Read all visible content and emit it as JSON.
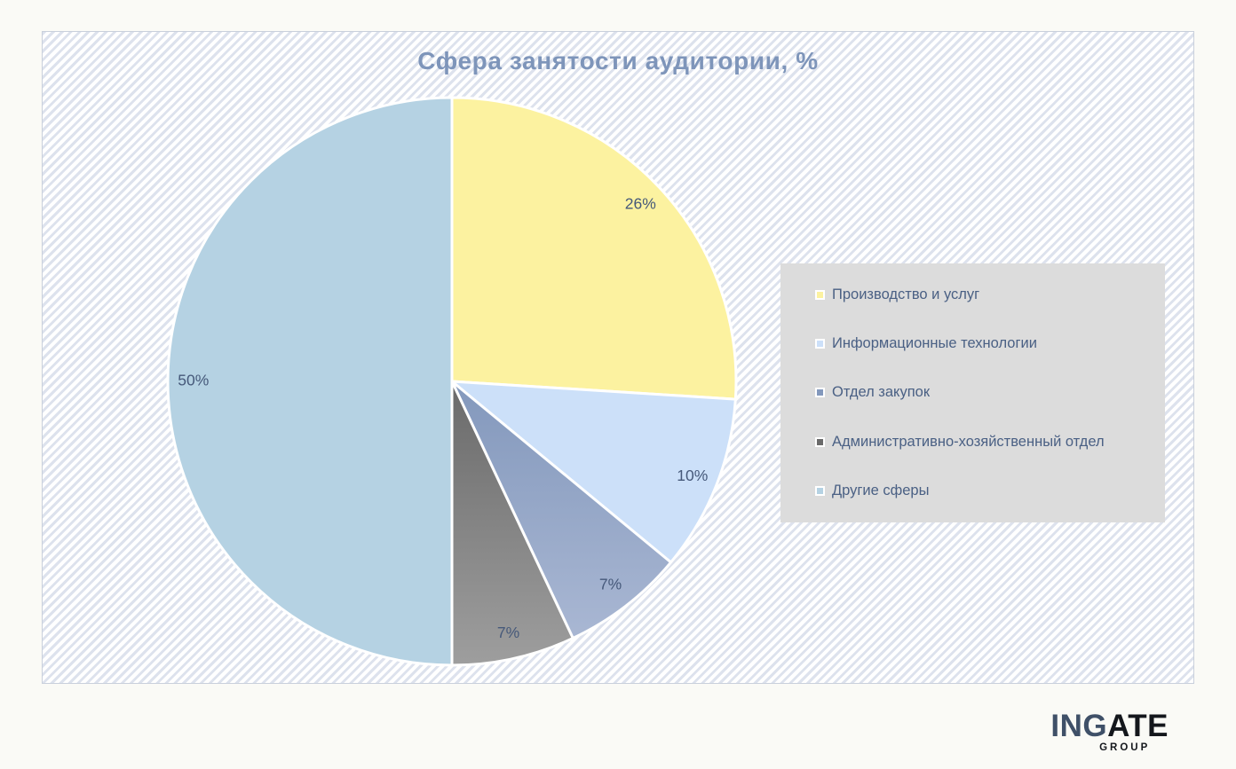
{
  "chart_data": {
    "type": "pie",
    "title": "Сфера занятости аудитории, %",
    "start_angle_deg": 0,
    "direction": "clockwise",
    "label_radius_ratio": 0.91,
    "label_color": "#46597a",
    "label_font_size": 17.5,
    "legend_position": "right",
    "slices": [
      {
        "label": "Производство и услуг",
        "value": 26,
        "display": "26%",
        "color": "#fcf2a0"
      },
      {
        "label": "Информационные технологии",
        "value": 10,
        "display": "10%",
        "color": "#cce0f9"
      },
      {
        "label": "Отдел закупок",
        "value": 7,
        "display": "7%",
        "color": "#8398bc",
        "color2": "#a9b7d3"
      },
      {
        "label": "Административно-хозяйственный отдел",
        "value": 7,
        "display": "7%",
        "color": "#6a6a6a",
        "color2": "#9e9e9e"
      },
      {
        "label": "Другие сферы",
        "value": 50,
        "display": "50%",
        "color": "#b5d2e3"
      }
    ]
  },
  "colors": {
    "title": "#7e95ba",
    "legend_background": "#dcdcdc",
    "legend_text": "#4a6084",
    "panel_stripe": "#dde2ed",
    "page_background": "#fafaf6",
    "slice_border": "#ffffff"
  },
  "logo": {
    "part1": "ING",
    "part2": "ATE",
    "subtitle": "GROUP"
  }
}
